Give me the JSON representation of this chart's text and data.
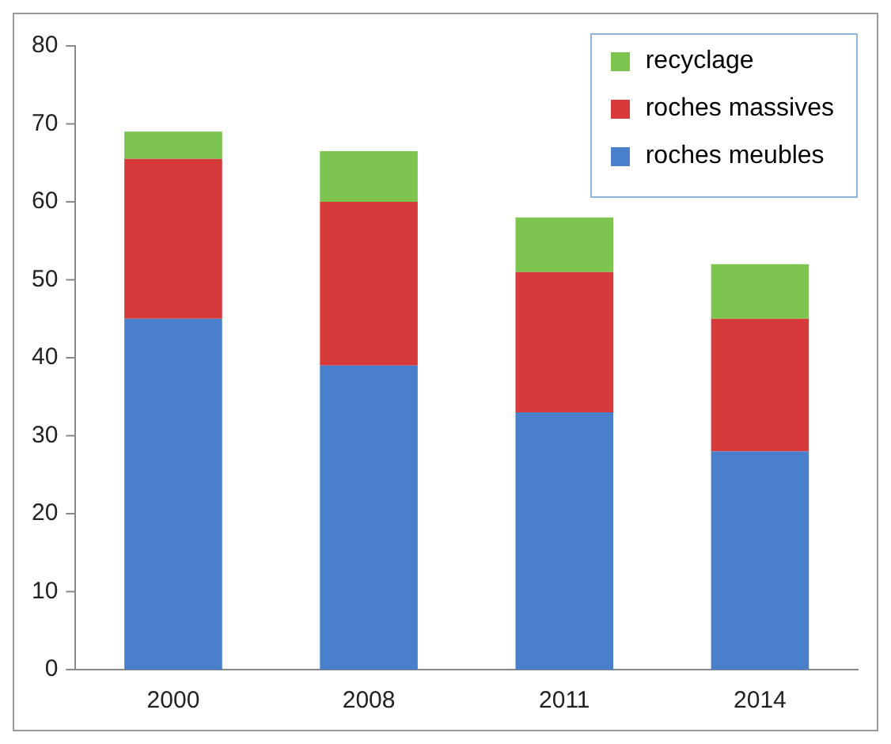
{
  "chart_data": {
    "type": "bar",
    "stacked": true,
    "categories": [
      "2000",
      "2008",
      "2011",
      "2014"
    ],
    "series": [
      {
        "name": "roches meubles",
        "color": "#4a7fcb",
        "values": [
          45,
          39,
          33,
          28
        ]
      },
      {
        "name": "roches massives",
        "color": "#d63a3a",
        "values": [
          20.5,
          21,
          18,
          17
        ]
      },
      {
        "name": "recyclage",
        "color": "#7dc550",
        "values": [
          3.5,
          6.5,
          7,
          7
        ]
      }
    ],
    "ylim": [
      0,
      80
    ],
    "yticks": [
      0,
      10,
      20,
      30,
      40,
      50,
      60,
      70,
      80
    ],
    "grid": false,
    "legend": "top right"
  }
}
